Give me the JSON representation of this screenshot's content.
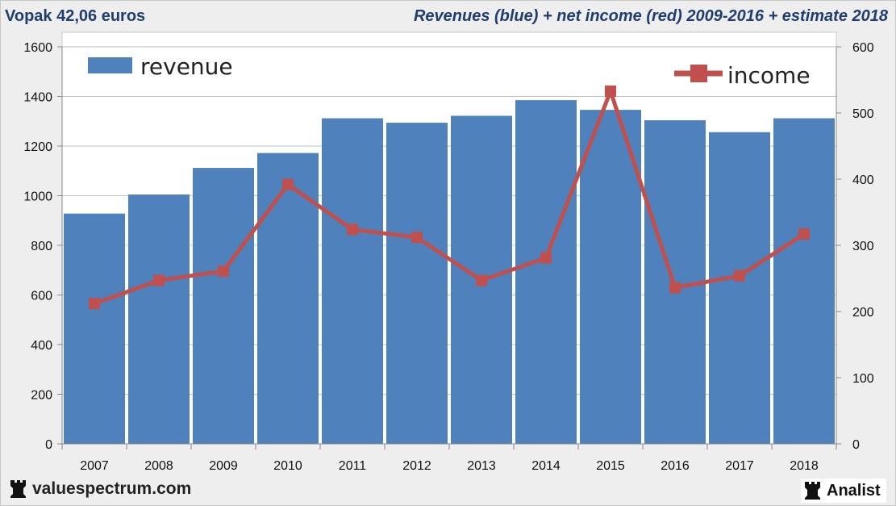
{
  "header": {
    "left_title": "Vopak 42,06 euros",
    "right_title": "Revenues (blue) + net income (red) 2009-2016 + estimate 2018"
  },
  "footer": {
    "site": "valuespectrum.com",
    "brand": "Analist",
    "icon": "chess-rook-icon"
  },
  "colors": {
    "revenue_bar": "#4f81bd",
    "income_line": "#c0504d",
    "grid": "#bfbfbf"
  },
  "chart_data": {
    "type": "bar",
    "categories": [
      "2007",
      "2008",
      "2009",
      "2010",
      "2011",
      "2012",
      "2013",
      "2014",
      "2015",
      "2016",
      "2017",
      "2018"
    ],
    "series": [
      {
        "name": "revenue",
        "type": "bar",
        "axis": "left",
        "values": [
          928,
          1005,
          1112,
          1172,
          1312,
          1294,
          1322,
          1385,
          1346,
          1304,
          1256,
          1312
        ]
      },
      {
        "name": "income",
        "type": "line",
        "axis": "right",
        "values": [
          212,
          247,
          261,
          392,
          324,
          312,
          247,
          281,
          533,
          236,
          254,
          317
        ]
      }
    ],
    "left_axis": {
      "ylim": [
        0,
        1600
      ],
      "ticks": [
        "0",
        "200",
        "400",
        "600",
        "800",
        "1000",
        "1200",
        "1400",
        "1600"
      ]
    },
    "right_axis": {
      "ylim": [
        0,
        600
      ],
      "ticks": [
        "0",
        "100",
        "200",
        "300",
        "400",
        "500",
        "600"
      ]
    },
    "grid": true,
    "legend": [
      {
        "label": "revenue",
        "placement": "top-left"
      },
      {
        "label": "income",
        "placement": "top-right"
      }
    ]
  }
}
